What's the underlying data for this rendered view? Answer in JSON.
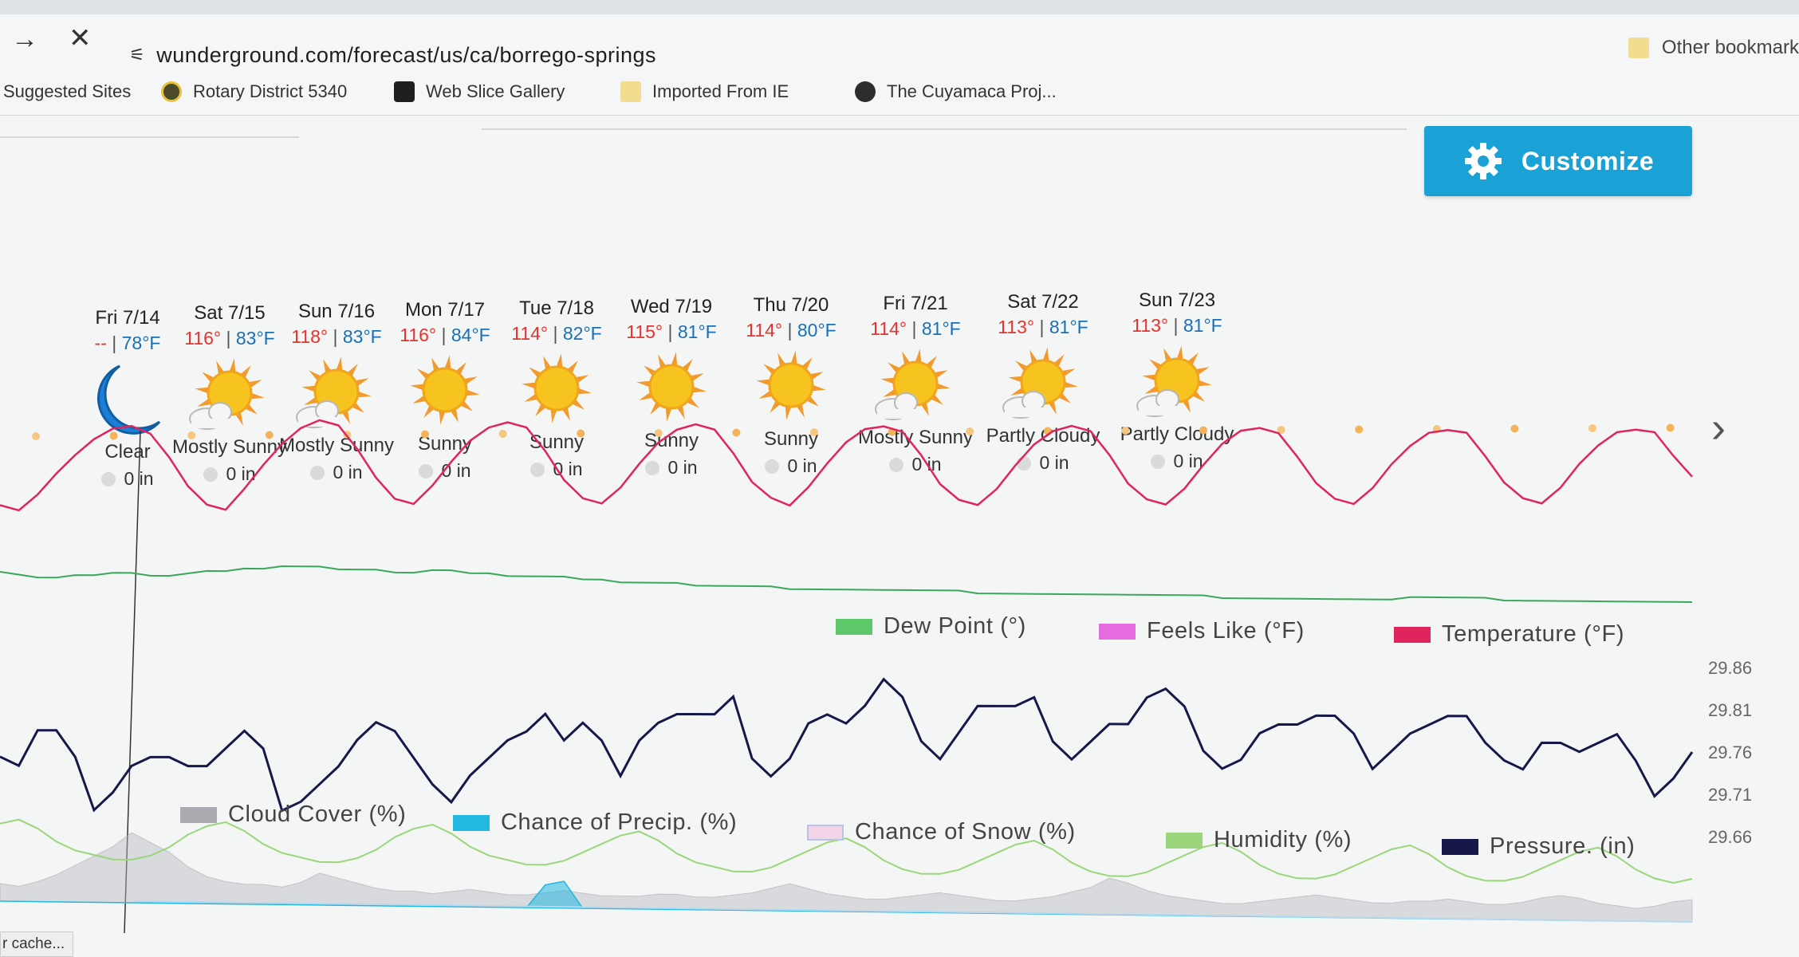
{
  "browser": {
    "url": "wunderground.com/forecast/us/ca/borrego-springs",
    "bookmarks": [
      {
        "label": "Suggested Sites",
        "icon": "none"
      },
      {
        "label": "Rotary District 5340",
        "icon": "rotary-icon"
      },
      {
        "label": "Web Slice Gallery",
        "icon": "web-slice-icon"
      },
      {
        "label": "Imported From IE",
        "icon": "folder-icon"
      },
      {
        "label": "The Cuyamaca Proj...",
        "icon": "globe-icon"
      }
    ],
    "other_bookmarks": "Other bookmark",
    "status": "r cache..."
  },
  "customize": {
    "label": "Customize"
  },
  "days": [
    {
      "date": "Fri 7/14",
      "hi": "--",
      "lo": "78°F",
      "cond": "Clear",
      "precip": "0 in",
      "icon": "moon"
    },
    {
      "date": "Sat 7/15",
      "hi": "116°",
      "lo": "83°F",
      "cond": "Mostly Sunny",
      "precip": "0 in",
      "icon": "sun-cloud"
    },
    {
      "date": "Sun 7/16",
      "hi": "118°",
      "lo": "83°F",
      "cond": "Mostly Sunny",
      "precip": "0 in",
      "icon": "sun-cloud"
    },
    {
      "date": "Mon 7/17",
      "hi": "116°",
      "lo": "84°F",
      "cond": "Sunny",
      "precip": "0 in",
      "icon": "sun"
    },
    {
      "date": "Tue 7/18",
      "hi": "114°",
      "lo": "82°F",
      "cond": "Sunny",
      "precip": "0 in",
      "icon": "sun"
    },
    {
      "date": "Wed 7/19",
      "hi": "115°",
      "lo": "81°F",
      "cond": "Sunny",
      "precip": "0 in",
      "icon": "sun"
    },
    {
      "date": "Thu 7/20",
      "hi": "114°",
      "lo": "80°F",
      "cond": "Sunny",
      "precip": "0 in",
      "icon": "sun"
    },
    {
      "date": "Fri 7/21",
      "hi": "114°",
      "lo": "81°F",
      "cond": "Mostly Sunny",
      "precip": "0 in",
      "icon": "sun-cloud"
    },
    {
      "date": "Sat 7/22",
      "hi": "113°",
      "lo": "81°F",
      "cond": "Partly Cloudy",
      "precip": "0 in",
      "icon": "sun-cloud"
    },
    {
      "date": "Sun 7/23",
      "hi": "113°",
      "lo": "81°F",
      "cond": "Partly Cloudy",
      "precip": "0 in",
      "icon": "sun-cloud"
    }
  ],
  "chart_data": [
    {
      "type": "line",
      "title": "",
      "series": [
        {
          "name": "Temperature (°F)",
          "color": "#e0245e",
          "values": [
            86,
            84,
            90,
            98,
            105,
            111,
            115,
            116,
            113,
            104,
            93,
            86,
            84,
            92,
            101,
            109,
            115,
            118,
            116,
            107,
            96,
            88,
            86,
            93,
            102,
            110,
            115,
            117,
            115,
            106,
            95,
            88,
            86,
            92,
            101,
            109,
            114,
            116,
            114,
            105,
            94,
            88,
            85,
            92,
            101,
            109,
            114,
            115,
            113,
            104,
            93,
            87,
            85,
            91,
            100,
            108,
            113,
            115,
            113,
            104,
            93,
            87,
            85,
            91,
            100,
            108,
            113,
            114,
            112,
            103,
            93,
            87,
            85,
            91,
            100,
            107,
            112,
            113,
            112,
            103,
            93,
            87,
            85,
            91,
            100,
            107,
            112,
            113,
            112,
            103,
            95
          ]
        },
        {
          "name": "Dew Point (°)",
          "color": "#3aa85a",
          "values": [
            31,
            30,
            29,
            29,
            30,
            30,
            31,
            31,
            30,
            30,
            31,
            32,
            32,
            33,
            33,
            34,
            34,
            34,
            33,
            33,
            33,
            32,
            32,
            33,
            33,
            32,
            32,
            31,
            31,
            31,
            31,
            30,
            30,
            29,
            29,
            29,
            29,
            28,
            28,
            28,
            28,
            28,
            27,
            27,
            27,
            27,
            27,
            27,
            27,
            27,
            27,
            27,
            26,
            26,
            26,
            26,
            26,
            26,
            26,
            26,
            26,
            26,
            26,
            26,
            26,
            25,
            25,
            25,
            25,
            25,
            25,
            25,
            25,
            25,
            25,
            26,
            26,
            26,
            26,
            26,
            25,
            25,
            25,
            25,
            25,
            25,
            25,
            25,
            25,
            25,
            25
          ]
        }
      ],
      "legend": [
        "Dew Point (°)",
        "Feels Like (°F)",
        "Temperature (°F)"
      ],
      "legend_colors": [
        "#5cc86a",
        "#e46be0",
        "#e0245e"
      ],
      "ylim": [
        0,
        130
      ]
    },
    {
      "type": "line",
      "title": "",
      "series": [
        {
          "name": "Pressure. (in)",
          "color": "#17184a",
          "values": [
            29.77,
            29.76,
            29.8,
            29.8,
            29.77,
            29.71,
            29.73,
            29.76,
            29.77,
            29.77,
            29.76,
            29.76,
            29.78,
            29.8,
            29.78,
            29.71,
            29.72,
            29.74,
            29.76,
            29.79,
            29.81,
            29.8,
            29.77,
            29.74,
            29.72,
            29.75,
            29.77,
            29.79,
            29.8,
            29.82,
            29.79,
            29.81,
            29.79,
            29.75,
            29.79,
            29.81,
            29.82,
            29.82,
            29.82,
            29.84,
            29.77,
            29.75,
            29.77,
            29.81,
            29.82,
            29.81,
            29.83,
            29.86,
            29.84,
            29.79,
            29.77,
            29.8,
            29.83,
            29.83,
            29.83,
            29.84,
            29.79,
            29.77,
            29.79,
            29.81,
            29.81,
            29.84,
            29.85,
            29.83,
            29.78,
            29.76,
            29.77,
            29.8,
            29.81,
            29.81,
            29.82,
            29.82,
            29.8,
            29.76,
            29.78,
            29.8,
            29.81,
            29.82,
            29.82,
            29.79,
            29.77,
            29.76,
            29.79,
            29.79,
            29.78,
            29.79,
            29.8,
            29.77,
            29.73,
            29.75,
            29.78
          ]
        },
        {
          "name": "Humidity (%)",
          "color": "#9bd67a",
          "values": [
            18,
            19,
            17,
            14,
            12,
            11,
            10,
            10,
            11,
            13,
            16,
            18,
            19,
            17,
            14,
            12,
            11,
            10,
            10,
            11,
            13,
            16,
            18,
            19,
            17,
            14,
            12,
            11,
            10,
            10,
            11,
            13,
            15,
            17,
            18,
            16,
            13,
            11,
            10,
            9,
            9,
            10,
            12,
            14,
            16,
            17,
            15,
            12,
            10,
            9,
            9,
            10,
            12,
            14,
            16,
            17,
            15,
            12,
            10,
            9,
            9,
            10,
            12,
            14,
            16,
            17,
            15,
            12,
            10,
            9,
            9,
            10,
            12,
            14,
            16,
            17,
            15,
            12,
            10,
            9,
            9,
            10,
            12,
            14,
            16,
            17,
            15,
            12,
            10,
            9,
            10
          ]
        },
        {
          "name": "Cloud Cover (%)",
          "color": "#b4b6ba",
          "values": [
            4,
            3,
            5,
            8,
            12,
            16,
            20,
            26,
            22,
            18,
            12,
            8,
            6,
            5,
            5,
            4,
            6,
            10,
            8,
            6,
            4,
            3,
            3,
            2,
            3,
            4,
            3,
            2,
            2,
            3,
            4,
            3,
            2,
            2,
            2,
            3,
            3,
            2,
            2,
            3,
            4,
            6,
            8,
            6,
            4,
            3,
            2,
            2,
            3,
            4,
            5,
            4,
            3,
            2,
            2,
            3,
            4,
            6,
            8,
            12,
            10,
            7,
            5,
            4,
            3,
            2,
            2,
            3,
            4,
            5,
            6,
            5,
            4,
            3,
            3,
            4,
            4,
            5,
            4,
            3,
            3,
            4,
            6,
            7,
            6,
            4,
            3,
            2,
            3,
            5,
            6
          ]
        },
        {
          "name": "Chance of Precip. (%)",
          "color": "#22b8e0",
          "values": [
            0,
            0,
            0,
            0,
            0,
            0,
            0,
            0,
            0,
            0,
            0,
            0,
            0,
            0,
            0,
            0,
            0,
            0,
            0,
            0,
            0,
            0,
            0,
            0,
            0,
            0,
            0,
            0,
            0,
            12,
            14,
            0,
            0,
            0,
            0,
            0,
            0,
            0,
            0,
            0,
            0,
            0,
            0,
            0,
            0,
            0,
            0,
            0,
            0,
            0,
            0,
            0,
            0,
            0,
            0,
            0,
            0,
            0,
            0,
            0,
            0,
            0,
            0,
            0,
            0,
            0,
            0,
            0,
            0,
            0,
            0,
            0,
            0,
            0,
            0,
            0,
            0,
            0,
            0,
            0,
            0,
            0,
            0,
            0,
            0,
            0,
            0,
            0,
            0,
            0,
            0
          ]
        }
      ],
      "legend": [
        "Cloud Cover (%)",
        "Chance of Precip. (%)",
        "Chance of Snow (%)",
        "Humidity (%)",
        "Pressure. (in)"
      ],
      "legend_colors": [
        "#a9abb0",
        "#22b8e0",
        "#e7c3dc",
        "#9bd67a",
        "#17184a"
      ],
      "y_ticks": [
        "29.86",
        "29.81",
        "29.76",
        "29.71",
        "29.66"
      ],
      "ylim_pressure": [
        29.66,
        29.86
      ],
      "ylim_percent": [
        0,
        100
      ]
    }
  ]
}
